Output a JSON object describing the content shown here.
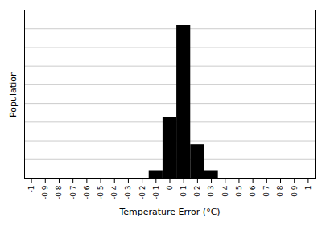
{
  "chart_data": {
    "type": "histogram",
    "bins": [
      -0.15,
      -0.05,
      0.05,
      0.15,
      0.25,
      0.35
    ],
    "values": [
      5,
      40,
      100,
      22,
      5
    ],
    "color": "#000000",
    "xlabel": "Temperature Error (°C)",
    "ylabel": "Population",
    "xlim": [
      -1.05,
      1.05
    ],
    "xticks": [
      -1.0,
      -0.9,
      -0.8,
      -0.7,
      -0.6,
      -0.5,
      -0.4,
      -0.3,
      -0.2,
      -0.1,
      0.0,
      0.1,
      0.2,
      0.3,
      0.4,
      0.5,
      0.6,
      0.7,
      0.8,
      0.9,
      1.0
    ],
    "ylim": [
      0,
      110
    ],
    "yticks": [
      0,
      12.222222222222221,
      24.444444444444443,
      36.666666666666664,
      48.888888888888886,
      61.11111111111111,
      73.33333333333333,
      85.55555555555556,
      97.77777777777777,
      110
    ],
    "grid": true,
    "tick_labels": "x"
  }
}
